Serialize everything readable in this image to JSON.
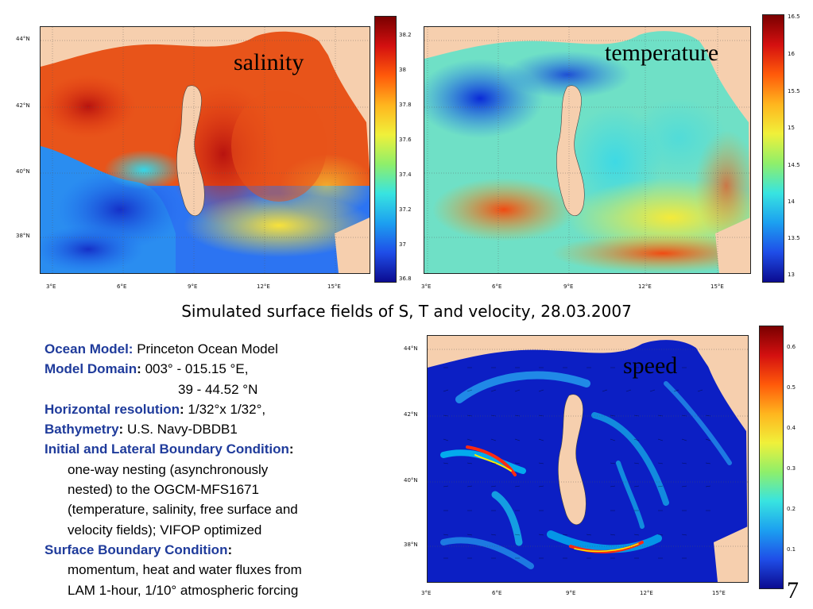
{
  "panels": {
    "salinity": {
      "label": "salinity",
      "colorbar_ticks": [
        "38.2",
        "38",
        "37.8",
        "37.6",
        "37.4",
        "37.2",
        "37",
        "36.8"
      ]
    },
    "temperature": {
      "label": "temperature",
      "colorbar_ticks": [
        "16.5",
        "16",
        "15.5",
        "15",
        "14.5",
        "14",
        "13.5",
        "13"
      ]
    },
    "speed": {
      "label": "speed",
      "colorbar_ticks": [
        "0.6",
        "0.5",
        "0.4",
        "0.3",
        "0.2",
        "0.1"
      ]
    }
  },
  "axes": {
    "lat_ticks": [
      "44°N",
      "42°N",
      "40°N",
      "38°N"
    ],
    "lon_ticks": [
      "3°E",
      "6°E",
      "9°E",
      "12°E",
      "15°E"
    ]
  },
  "caption": "Simulated surface fields of S, T and velocity, 28.03.2007",
  "info": {
    "ocean_model_key": "Ocean Model:",
    "ocean_model_value": " Princeton Ocean Model",
    "domain_key": "Model Domain",
    "domain_colon": ":",
    "domain_value_1": " 003° - 015.15 °E,",
    "domain_value_2": "39 - 44.52 °N",
    "horiz_key": "Horizontal resolution",
    "horiz_colon": ":",
    "horiz_value": " 1/32°x 1/32°,",
    "bathy_key": "Bathymetry",
    "bathy_colon": ":",
    "bathy_value": " U.S. Navy-DBDB1",
    "ilbc_key": "Initial and Lateral Boundary Condition",
    "ilbc_colon": ":",
    "ilbc_lines": [
      "one-way nesting (asynchronously",
      "nested) to the OGCM-MFS1671",
      "(temperature, salinity, free surface and",
      "velocity fields); VIFOP optimized"
    ],
    "sbc_key": "Surface Boundary Condition",
    "sbc_colon": ":",
    "sbc_lines": [
      "momentum, heat and water fluxes from",
      "LAM 1-hour, 1/10° atmospheric forcing"
    ]
  },
  "slide_number": "7",
  "colors": {
    "land": "#f6cfae",
    "heading_blue": "#1f3b9b"
  }
}
